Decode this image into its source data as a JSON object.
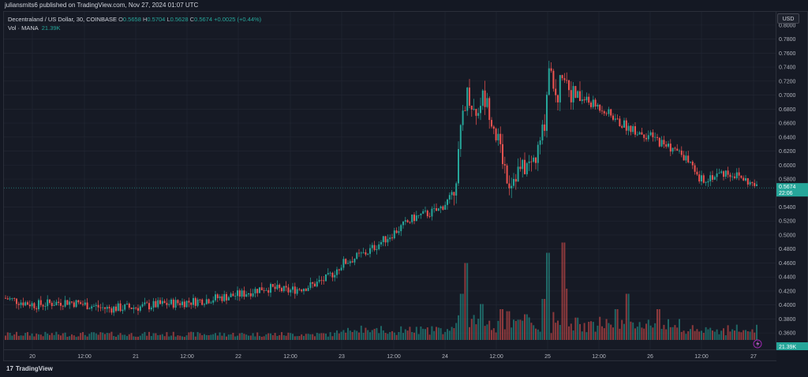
{
  "header": {
    "published_text": "juliansmits6 published on TradingView.com, Nov 27, 2024 01:07 UTC"
  },
  "legend": {
    "symbol": "Decentraland / US Dollar, 30, COINBASE",
    "o_label": "O",
    "o_value": "0.5658",
    "h_label": "H",
    "h_value": "0.5704",
    "l_label": "L",
    "l_value": "0.5628",
    "c_label": "C",
    "c_value": "0.5674",
    "change": "+0.0025 (+0.44%)",
    "vol_label": "Vol · MANA",
    "vol_value": "21.39K"
  },
  "currency_button": "USD",
  "price_tag": {
    "price": "0.5674",
    "countdown": "22:06"
  },
  "volume_tag": "21.39K",
  "brand": {
    "name": "TradingView",
    "logo_glyph": "17"
  },
  "colors": {
    "up": "#26a69a",
    "down": "#ef5350",
    "background": "#161a25",
    "grid": "#232734",
    "text": "#b2b5be"
  },
  "icons": {
    "lightning": "lightning-icon"
  },
  "chart_data": {
    "type": "candlestick",
    "timeframe": "30",
    "y_axis": {
      "ticks": [
        "0.8000",
        "0.7800",
        "0.7600",
        "0.7400",
        "0.7200",
        "0.7000",
        "0.6800",
        "0.6600",
        "0.6400",
        "0.6200",
        "0.6000",
        "0.5800",
        "0.5400",
        "0.5200",
        "0.5000",
        "0.4800",
        "0.4600",
        "0.4400",
        "0.4200",
        "0.4000",
        "0.3800",
        "0.3600"
      ],
      "range": [
        0.35,
        0.81
      ]
    },
    "x_axis": {
      "ticks": [
        "20",
        "12:00",
        "21",
        "12:00",
        "22",
        "12:00",
        "23",
        "12:00",
        "24",
        "12:00",
        "25",
        "12:00",
        "26",
        "12:00",
        "27"
      ]
    },
    "last_price": 0.5674,
    "price_path_anchors": [
      [
        0,
        0.41
      ],
      [
        40,
        0.4
      ],
      [
        80,
        0.405
      ],
      [
        130,
        0.395
      ],
      [
        170,
        0.397
      ],
      [
        200,
        0.401
      ],
      [
        240,
        0.405
      ],
      [
        270,
        0.41
      ],
      [
        300,
        0.415
      ],
      [
        330,
        0.425
      ],
      [
        360,
        0.42
      ],
      [
        390,
        0.428
      ],
      [
        410,
        0.438
      ],
      [
        430,
        0.46
      ],
      [
        460,
        0.475
      ],
      [
        490,
        0.5
      ],
      [
        520,
        0.525
      ],
      [
        550,
        0.535
      ],
      [
        568,
        0.555
      ],
      [
        575,
        0.6
      ],
      [
        582,
        0.68
      ],
      [
        588,
        0.705
      ],
      [
        598,
        0.67
      ],
      [
        606,
        0.7
      ],
      [
        615,
        0.68
      ],
      [
        625,
        0.64
      ],
      [
        640,
        0.575
      ],
      [
        650,
        0.59
      ],
      [
        665,
        0.6
      ],
      [
        675,
        0.61
      ],
      [
        685,
        0.66
      ],
      [
        692,
        0.76
      ],
      [
        700,
        0.685
      ],
      [
        708,
        0.74
      ],
      [
        720,
        0.7
      ],
      [
        740,
        0.69
      ],
      [
        760,
        0.68
      ],
      [
        780,
        0.66
      ],
      [
        800,
        0.65
      ],
      [
        820,
        0.64
      ],
      [
        845,
        0.625
      ],
      [
        865,
        0.61
      ],
      [
        880,
        0.578
      ],
      [
        900,
        0.585
      ],
      [
        915,
        0.59
      ],
      [
        935,
        0.582
      ],
      [
        955,
        0.567
      ]
    ],
    "volume_spikes": [
      [
        580,
        0.45
      ],
      [
        585,
        0.75
      ],
      [
        605,
        0.35
      ],
      [
        630,
        0.3
      ],
      [
        640,
        0.28
      ],
      [
        660,
        0.25
      ],
      [
        685,
        0.4
      ],
      [
        690,
        0.85
      ],
      [
        708,
        0.95
      ],
      [
        712,
        0.5
      ],
      [
        775,
        0.3
      ],
      [
        790,
        0.45
      ],
      [
        830,
        0.3
      ]
    ]
  }
}
